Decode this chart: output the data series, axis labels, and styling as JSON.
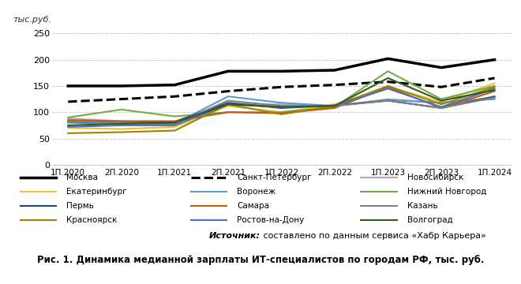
{
  "x_labels": [
    "1П.2020",
    "2П.2020",
    "1П.2021",
    "2П.2021",
    "1П.2022",
    "2П.2022",
    "1П.2023",
    "2П.2023",
    "1П.2024"
  ],
  "series": {
    "Москва": [
      150,
      150,
      152,
      178,
      178,
      180,
      202,
      185,
      200
    ],
    "Санкт-Петербург": [
      120,
      125,
      130,
      140,
      148,
      152,
      158,
      148,
      165
    ],
    "Новосибирск": [
      88,
      83,
      80,
      115,
      115,
      112,
      125,
      118,
      128
    ],
    "Екатеринбург": [
      70,
      68,
      72,
      112,
      100,
      115,
      148,
      120,
      155
    ],
    "Воронеж": [
      80,
      78,
      78,
      130,
      118,
      112,
      123,
      118,
      125
    ],
    "Нижний Новгород": [
      90,
      105,
      92,
      100,
      100,
      110,
      178,
      125,
      150
    ],
    "Пермь": [
      82,
      80,
      82,
      118,
      108,
      113,
      122,
      108,
      130
    ],
    "Самара": [
      85,
      83,
      83,
      100,
      98,
      108,
      148,
      108,
      140
    ],
    "Казань": [
      82,
      80,
      78,
      122,
      112,
      112,
      122,
      108,
      128
    ],
    "Красноярск": [
      60,
      62,
      65,
      115,
      96,
      112,
      150,
      115,
      148
    ],
    "Ростов-на-Дону": [
      72,
      75,
      75,
      115,
      110,
      112,
      145,
      110,
      145
    ],
    "Волгоград": [
      75,
      78,
      80,
      115,
      110,
      112,
      165,
      122,
      142
    ]
  },
  "colors": {
    "Москва": "#000000",
    "Санкт-Петербург": "#000000",
    "Новосибирск": "#aaaaaa",
    "Екатеринбург": "#f0c030",
    "Воронеж": "#5b9bd5",
    "Нижний Новгород": "#70ad47",
    "Пермь": "#264478",
    "Самара": "#c45911",
    "Казань": "#808080",
    "Красноярск": "#9c8400",
    "Ростов-на-Дону": "#4472c4",
    "Волгоград": "#375623"
  },
  "linestyles": {
    "Москва": "solid",
    "Санкт-Петербург": "dashed",
    "Новосибирск": "solid",
    "Екатеринбург": "solid",
    "Воронеж": "solid",
    "Нижний Новгород": "solid",
    "Пермь": "solid",
    "Самара": "solid",
    "Казань": "solid",
    "Красноярск": "solid",
    "Ростов-на-Дону": "solid",
    "Волгоград": "solid"
  },
  "linewidths": {
    "Москва": 2.5,
    "Санкт-Петербург": 2.2,
    "Новосибирск": 1.5,
    "Екатеринбург": 1.5,
    "Воронеж": 1.5,
    "Нижний Новгород": 1.5,
    "Пермь": 1.5,
    "Самара": 1.5,
    "Казань": 1.5,
    "Красноярск": 1.5,
    "Ростов-на-Дону": 1.5,
    "Волгоград": 1.5
  },
  "ylabel": "тыс.руб.",
  "ylim": [
    0,
    265
  ],
  "yticks": [
    0,
    50,
    100,
    150,
    200,
    250
  ],
  "source_italic": "Источник:",
  "source_normal": " составлено по данным сервиса «Хабр Карьера»",
  "figure_note": "Рис. 1. Динамика медианной зарплаты ИТ-специалистов по городам РФ, тыс. руб.",
  "legend_order": [
    "Москва",
    "Санкт-Петербург",
    "Новосибирск",
    "Екатеринбург",
    "Воронеж",
    "Нижний Новгород",
    "Пермь",
    "Самара",
    "Казань",
    "Красноярск",
    "Ростов-на-Дону",
    "Волгоград"
  ]
}
